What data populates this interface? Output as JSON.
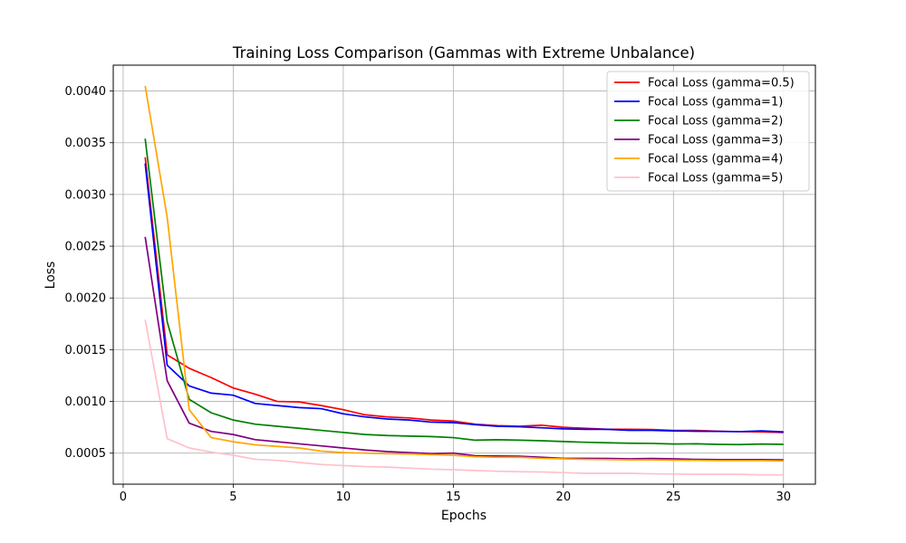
{
  "chart_data": {
    "type": "line",
    "title": "Training Loss Comparison (Gammas with Extreme Unbalance)",
    "xlabel": "Epochs",
    "ylabel": "Loss",
    "xlim": [
      -0.45,
      31.45
    ],
    "ylim": [
      0.0002,
      0.00425
    ],
    "xticks": [
      0,
      5,
      10,
      15,
      20,
      25,
      30
    ],
    "yticks": [
      0.0005,
      0.001,
      0.0015,
      0.002,
      0.0025,
      0.003,
      0.0035,
      0.004
    ],
    "ytick_labels": [
      "0.0005",
      "0.0010",
      "0.0015",
      "0.0020",
      "0.0025",
      "0.0030",
      "0.0035",
      "0.0040"
    ],
    "grid": true,
    "legend_position": "top-right",
    "x": [
      1,
      2,
      3,
      4,
      5,
      6,
      7,
      8,
      9,
      10,
      11,
      12,
      13,
      14,
      15,
      16,
      17,
      18,
      19,
      20,
      21,
      22,
      23,
      24,
      25,
      26,
      27,
      28,
      29,
      30
    ],
    "series": [
      {
        "name": "Focal Loss (gamma=0.5)",
        "color": "#ff0000",
        "values": [
          0.00336,
          0.00145,
          0.00132,
          0.00123,
          0.00113,
          0.00107,
          0.001,
          0.000995,
          0.00096,
          0.00092,
          0.00087,
          0.00085,
          0.00084,
          0.00082,
          0.00081,
          0.00078,
          0.000765,
          0.00076,
          0.00077,
          0.00075,
          0.00074,
          0.00073,
          0.00073,
          0.000728,
          0.00072,
          0.00072,
          0.000712,
          0.000708,
          0.000705,
          0.0007
        ]
      },
      {
        "name": "Focal Loss (gamma=1)",
        "color": "#0000ff",
        "values": [
          0.0033,
          0.00135,
          0.00115,
          0.00108,
          0.00106,
          0.00098,
          0.00096,
          0.00094,
          0.00093,
          0.00088,
          0.00085,
          0.00083,
          0.00082,
          0.0008,
          0.000795,
          0.000775,
          0.00076,
          0.000755,
          0.000745,
          0.000735,
          0.00073,
          0.00073,
          0.00072,
          0.00072,
          0.000715,
          0.000712,
          0.00071,
          0.000708,
          0.000715,
          0.000705
        ]
      },
      {
        "name": "Focal Loss (gamma=2)",
        "color": "#008000",
        "values": [
          0.00354,
          0.00177,
          0.00102,
          0.00089,
          0.00082,
          0.00078,
          0.00076,
          0.00074,
          0.00072,
          0.0007,
          0.00068,
          0.00067,
          0.000665,
          0.00066,
          0.00065,
          0.000625,
          0.00063,
          0.000625,
          0.00062,
          0.000612,
          0.000605,
          0.0006,
          0.000596,
          0.000594,
          0.000588,
          0.00059,
          0.000585,
          0.000583,
          0.000588,
          0.000585
        ]
      },
      {
        "name": "Focal Loss (gamma=3)",
        "color": "#800080",
        "values": [
          0.00259,
          0.0012,
          0.00079,
          0.00071,
          0.00068,
          0.00063,
          0.00061,
          0.00059,
          0.00057,
          0.00055,
          0.00053,
          0.000515,
          0.000505,
          0.000495,
          0.0005,
          0.000475,
          0.000472,
          0.00047,
          0.00046,
          0.00045,
          0.00045,
          0.000448,
          0.000445,
          0.000448,
          0.000445,
          0.00044,
          0.000438,
          0.000438,
          0.000437,
          0.000435
        ]
      },
      {
        "name": "Focal Loss (gamma=4)",
        "color": "#ffa500",
        "values": [
          0.00405,
          0.00278,
          0.00092,
          0.00065,
          0.00061,
          0.00058,
          0.000565,
          0.00055,
          0.00052,
          0.000505,
          0.0005,
          0.000495,
          0.000492,
          0.000485,
          0.00048,
          0.000465,
          0.00046,
          0.00046,
          0.00045,
          0.000445,
          0.00044,
          0.000438,
          0.000435,
          0.000435,
          0.000432,
          0.00043,
          0.000428,
          0.000428,
          0.000428,
          0.000425
        ]
      },
      {
        "name": "Focal Loss (gamma=5)",
        "color": "#ffc0cb",
        "values": [
          0.00179,
          0.00064,
          0.00055,
          0.00051,
          0.00048,
          0.00044,
          0.00043,
          0.00041,
          0.00039,
          0.00038,
          0.00037,
          0.000365,
          0.000355,
          0.000345,
          0.00034,
          0.000332,
          0.000325,
          0.00032,
          0.000318,
          0.000312,
          0.000305,
          0.000305,
          0.000305,
          0.0003,
          0.000298,
          0.000295,
          0.000295,
          0.000295,
          0.00029,
          0.00029
        ]
      }
    ]
  }
}
